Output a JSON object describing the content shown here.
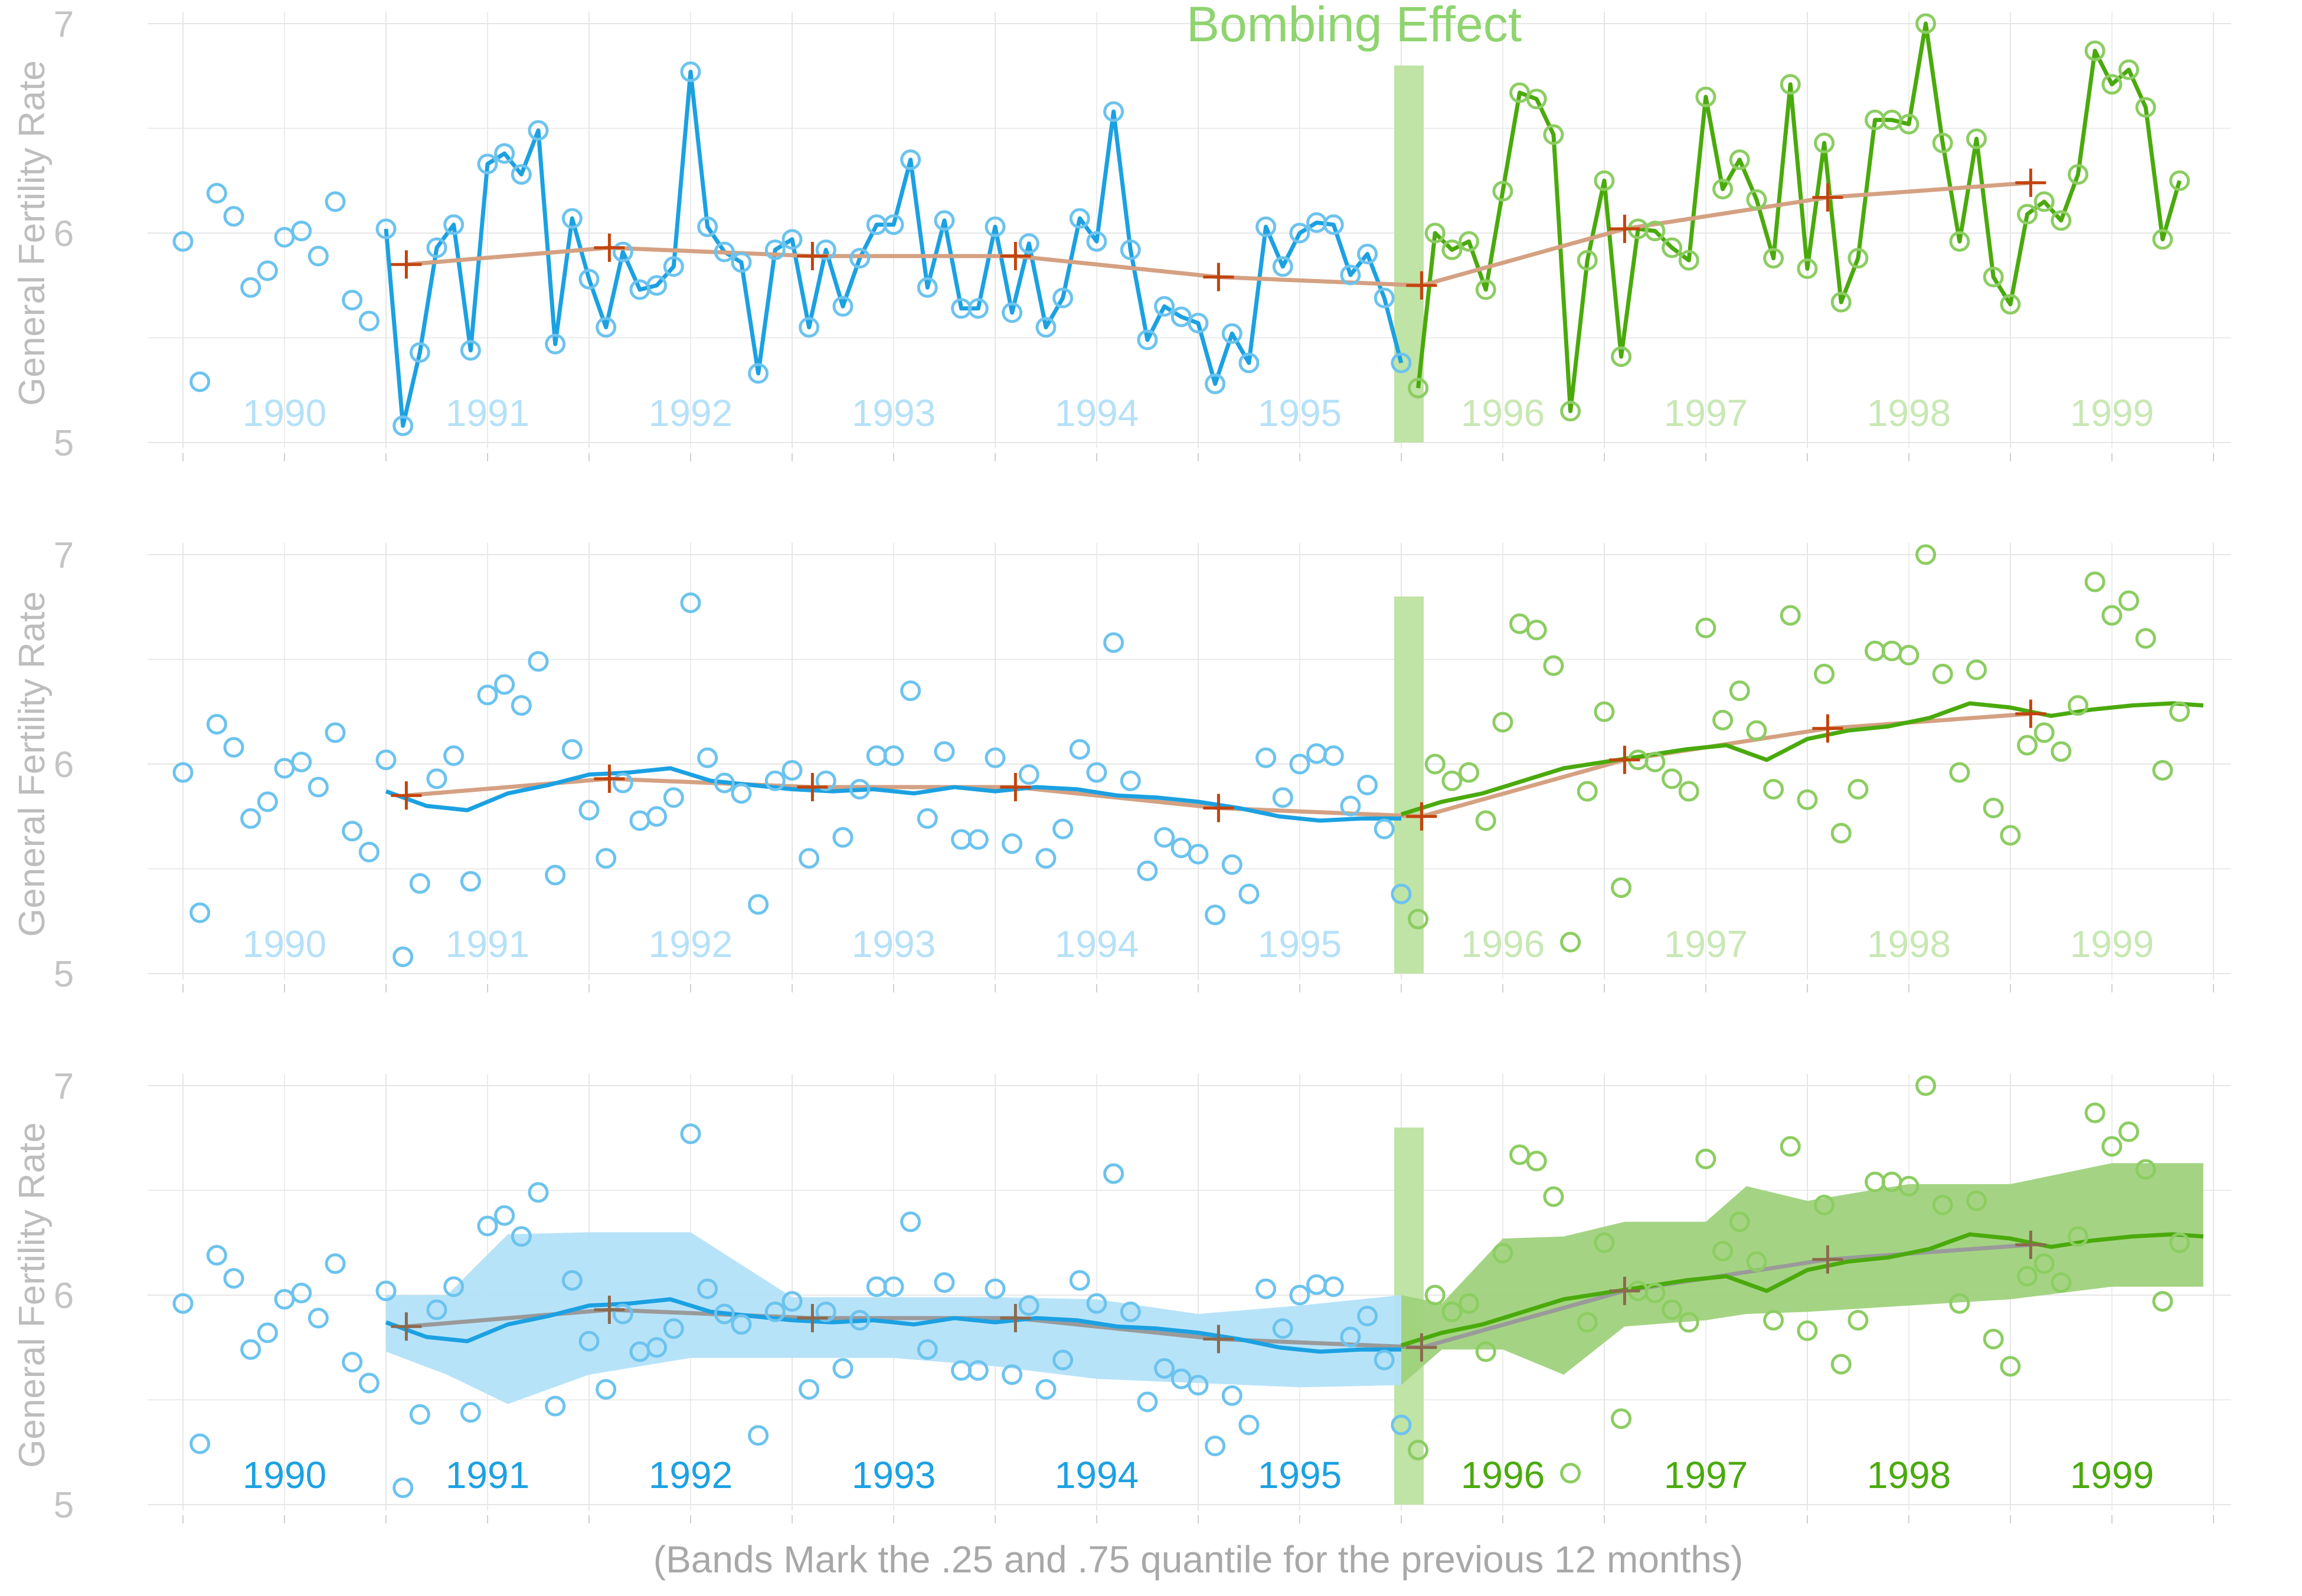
{
  "chart_data": {
    "type": "line",
    "annotation": "Bombing Effect",
    "caption": "(Bands Mark the .25 and .75 quantile for the previous 12 months)",
    "ylabel": "General Fertility Rate",
    "ylim": [
      5,
      7
    ],
    "yticks": [
      "5",
      "6",
      "7"
    ],
    "xlim": [
      1989.5,
      1999.5
    ],
    "year_labels": [
      "1990",
      "1991",
      "1992",
      "1993",
      "1994",
      "1995",
      "1996",
      "1997",
      "1998",
      "1999"
    ],
    "bombing_time": 1995.5,
    "colors": {
      "pre": "#1ba1e2",
      "post": "#4aaa0c",
      "trend": "#d4a182",
      "trend_gray": "#9a9a9a",
      "cross": "#c2440d",
      "annotation": "#8fd46f",
      "bombing_band": "#c0e3a6",
      "pre_band": "#b3e1f9",
      "post_band": "#9fd27c"
    },
    "panels": [
      {
        "panel": "monthly",
        "connect_points": true,
        "show_smooth": false,
        "show_bands": false,
        "year_labels_style": "faded",
        "trend_color": "trend"
      },
      {
        "panel": "smoothed",
        "connect_points": false,
        "show_smooth": true,
        "show_bands": false,
        "year_labels_style": "faded",
        "trend_color": "trend"
      },
      {
        "panel": "quantile-bands",
        "connect_points": false,
        "show_smooth": true,
        "show_bands": true,
        "year_labels_style": "solid",
        "trend_color": "trend_gray"
      }
    ],
    "monthly_gfr": {
      "start": 1989.5,
      "step": 0.08333,
      "values": [
        5.96,
        5.29,
        6.19,
        6.08,
        5.74,
        5.82,
        5.98,
        6.01,
        5.89,
        6.15,
        5.68,
        5.58,
        6.02,
        5.08,
        5.43,
        5.93,
        6.04,
        5.44,
        6.33,
        6.38,
        6.28,
        6.49,
        5.47,
        6.07,
        5.78,
        5.55,
        5.91,
        5.73,
        5.75,
        5.84,
        6.77,
        6.03,
        5.91,
        5.86,
        5.33,
        5.92,
        5.97,
        5.55,
        5.92,
        5.65,
        5.88,
        6.04,
        6.04,
        6.35,
        5.74,
        6.06,
        5.64,
        5.64,
        6.03,
        5.62,
        5.95,
        5.55,
        5.69,
        6.07,
        5.96,
        6.58,
        5.92,
        5.49,
        5.65,
        5.6,
        5.57,
        5.28,
        5.52,
        5.38,
        6.03,
        5.84,
        6.0,
        6.05,
        6.04,
        5.8,
        5.9,
        5.69,
        5.38,
        5.26,
        6.0,
        5.92,
        5.96,
        5.73,
        6.2,
        6.67,
        6.64,
        6.47,
        5.15,
        5.87,
        6.25,
        5.41,
        6.02,
        6.01,
        5.93,
        5.87,
        6.65,
        6.21,
        6.35,
        6.16,
        5.88,
        6.71,
        5.83,
        6.43,
        5.67,
        5.88,
        6.54,
        6.54,
        6.52,
        7.0,
        6.43,
        5.96,
        6.45,
        5.79,
        5.66,
        6.09,
        6.15,
        6.06,
        6.28,
        6.87,
        6.71,
        6.78,
        6.6,
        5.97,
        6.25
      ]
    },
    "smoothed_gfr": {
      "pre": {
        "x": [
          1990.5,
          1990.7,
          1990.9,
          1991.1,
          1991.3,
          1991.5,
          1991.7,
          1991.9,
          1992.1,
          1992.3,
          1992.5,
          1992.7,
          1992.9,
          1993.1,
          1993.3,
          1993.5,
          1993.7,
          1993.9,
          1994.1,
          1994.3,
          1994.5,
          1994.7,
          1994.9,
          1995.1,
          1995.3,
          1995.5
        ],
        "y": [
          5.87,
          5.8,
          5.78,
          5.86,
          5.9,
          5.95,
          5.96,
          5.98,
          5.92,
          5.9,
          5.88,
          5.87,
          5.88,
          5.86,
          5.89,
          5.87,
          5.89,
          5.88,
          5.85,
          5.84,
          5.82,
          5.79,
          5.75,
          5.73,
          5.74,
          5.74
        ]
      },
      "post": {
        "x": [
          1995.5,
          1995.7,
          1995.9,
          1996.1,
          1996.3,
          1996.5,
          1996.7,
          1996.9,
          1997.1,
          1997.3,
          1997.5,
          1997.7,
          1997.9,
          1998.1,
          1998.3,
          1998.5,
          1998.7,
          1998.9,
          1999.1,
          1999.3,
          1999.45
        ],
        "y": [
          5.76,
          5.82,
          5.86,
          5.92,
          5.98,
          6.01,
          6.04,
          6.07,
          6.09,
          6.02,
          6.12,
          6.16,
          6.18,
          6.22,
          6.29,
          6.27,
          6.23,
          6.26,
          6.28,
          6.29,
          6.28
        ]
      }
    },
    "annual_means": {
      "x": [
        1990.6,
        1991.6,
        1992.6,
        1993.6,
        1994.6,
        1995.6,
        1996.6,
        1997.6,
        1998.6
      ],
      "y": [
        5.85,
        5.93,
        5.89,
        5.89,
        5.79,
        5.75,
        6.02,
        6.17,
        6.24
      ]
    },
    "quantile_bands": {
      "pre": {
        "x": [
          1990.5,
          1990.8,
          1991.1,
          1991.5,
          1992.0,
          1992.5,
          1993.0,
          1993.5,
          1994.0,
          1994.5,
          1995.0,
          1995.5
        ],
        "q25": [
          5.73,
          5.62,
          5.48,
          5.62,
          5.7,
          5.7,
          5.7,
          5.66,
          5.6,
          5.58,
          5.56,
          5.57
        ],
        "q75": [
          6.0,
          6.0,
          6.29,
          6.3,
          6.3,
          5.99,
          5.99,
          5.99,
          5.98,
          5.91,
          5.95,
          6.0
        ]
      },
      "post": {
        "x": [
          1995.5,
          1995.7,
          1996.0,
          1996.3,
          1996.6,
          1997.0,
          1997.2,
          1997.5,
          1998.0,
          1998.5,
          1999.0,
          1999.45
        ],
        "q25": [
          5.57,
          5.74,
          5.74,
          5.62,
          5.85,
          5.88,
          5.91,
          5.92,
          5.95,
          5.98,
          6.04,
          6.04
        ],
        "q75": [
          6.0,
          5.96,
          6.27,
          6.28,
          6.35,
          6.35,
          6.52,
          6.45,
          6.53,
          6.53,
          6.63,
          6.63
        ]
      }
    }
  }
}
